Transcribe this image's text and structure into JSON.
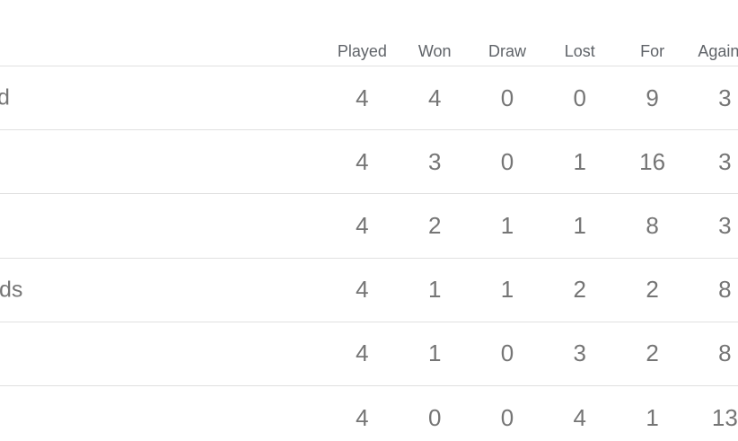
{
  "table": {
    "columns": [
      "Played",
      "Won",
      "Draw",
      "Lost",
      "For",
      "Against"
    ],
    "rows": [
      {
        "team_visible_text": "d",
        "played": "4",
        "won": "4",
        "draw": "0",
        "lost": "0",
        "for": "9",
        "against": "3"
      },
      {
        "team_visible_text": "",
        "played": "4",
        "won": "3",
        "draw": "0",
        "lost": "1",
        "for": "16",
        "against": "3"
      },
      {
        "team_visible_text": "",
        "played": "4",
        "won": "2",
        "draw": "1",
        "lost": "1",
        "for": "8",
        "against": "3"
      },
      {
        "team_visible_text": "ds",
        "played": "4",
        "won": "1",
        "draw": "1",
        "lost": "2",
        "for": "2",
        "against": "8"
      },
      {
        "team_visible_text": "",
        "played": "4",
        "won": "1",
        "draw": "0",
        "lost": "3",
        "for": "2",
        "against": "8"
      },
      {
        "team_visible_text": "",
        "played": "4",
        "won": "0",
        "draw": "0",
        "lost": "4",
        "for": "1",
        "against": "13"
      }
    ],
    "colors": {
      "header_text": "#5f6368",
      "cell_text": "#757575",
      "divider": "#e0e0e0"
    }
  }
}
